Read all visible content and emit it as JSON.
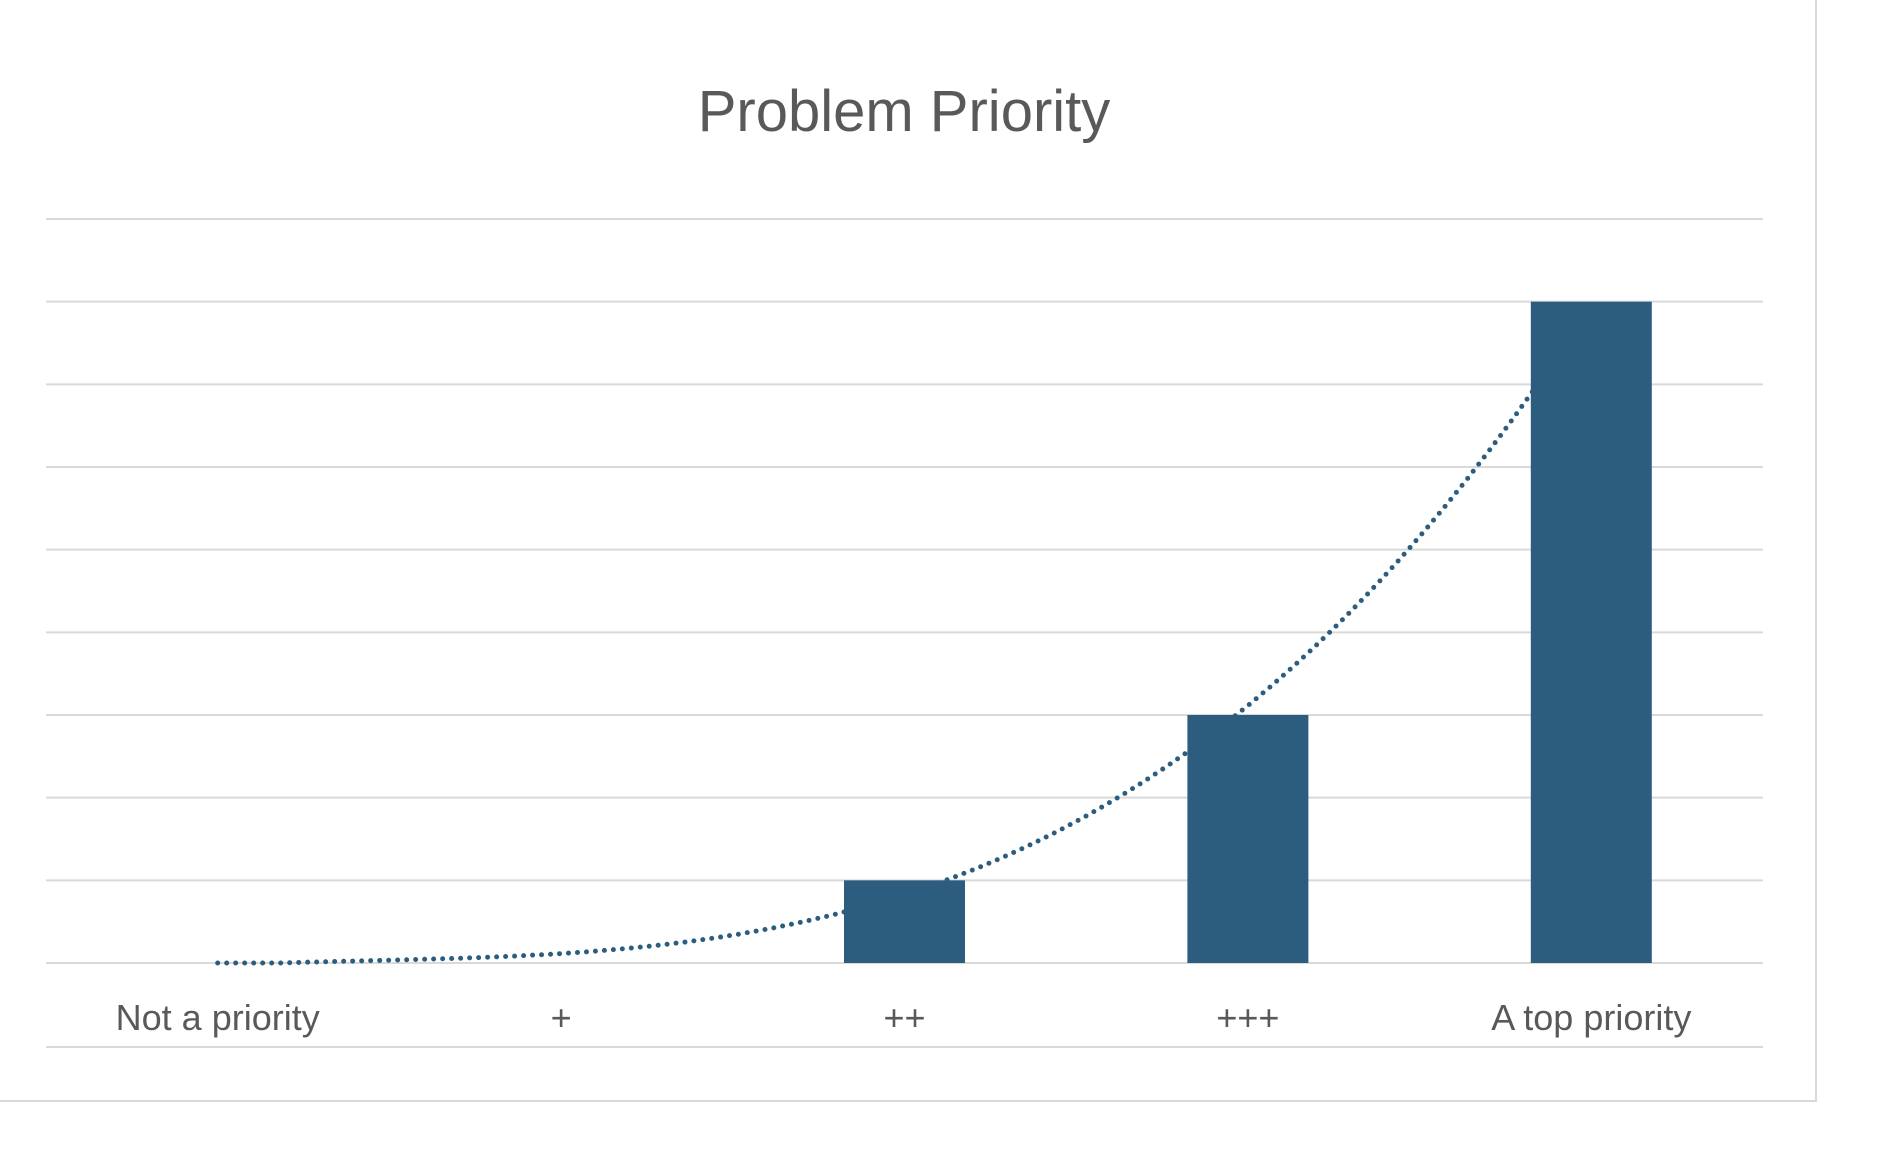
{
  "chart_data": {
    "type": "bar",
    "title": "Problem Priority",
    "categories": [
      "Not a priority",
      "+",
      "++",
      "+++",
      "A top priority"
    ],
    "values": [
      0,
      0,
      1,
      3,
      8
    ],
    "ylim": [
      0,
      9
    ],
    "y_tick_labels_shown": false,
    "grid": true,
    "legend": "none",
    "trendline": {
      "type": "polynomial",
      "style": "dotted"
    },
    "colors": {
      "bar": "#2c5d7f",
      "trendline": "#2c5d7f",
      "grid": "#d9d9d9",
      "text": "#595959"
    }
  }
}
